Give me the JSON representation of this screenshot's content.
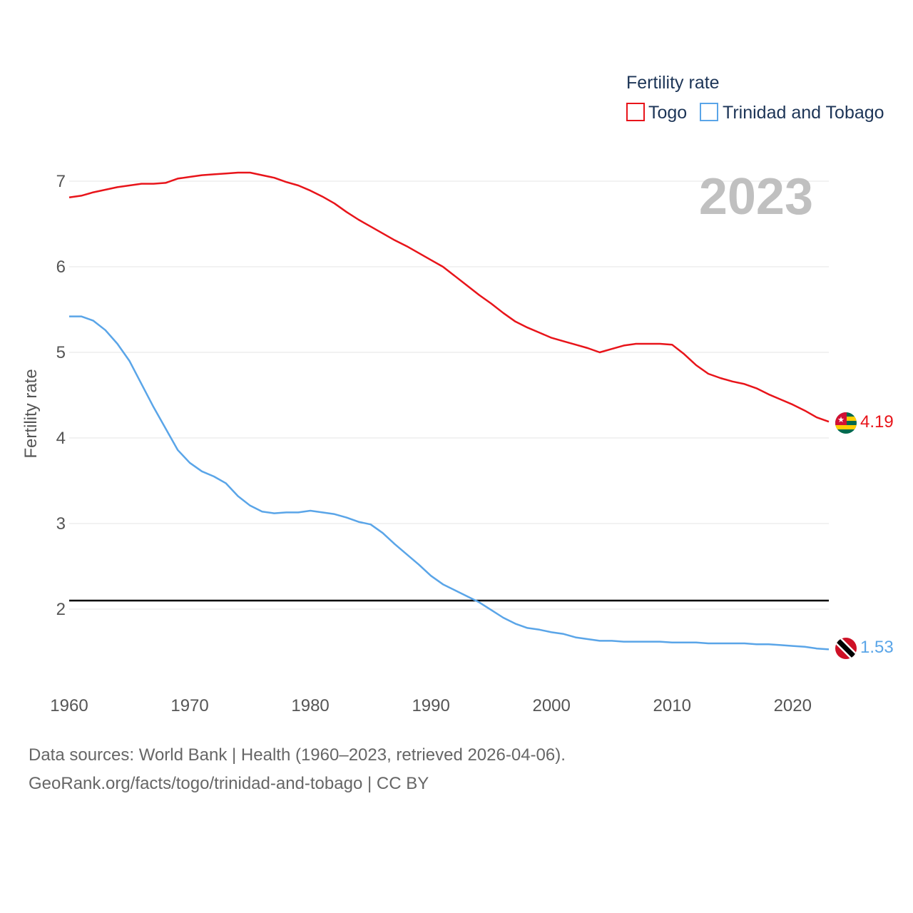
{
  "chart_data": {
    "type": "line",
    "title": "Fertility rate",
    "ylabel": "Fertility rate",
    "xlabel": "",
    "current_year": "2023",
    "xlim": [
      1960,
      2023
    ],
    "ylim": [
      1.2,
      7.45
    ],
    "x_ticks": [
      1960,
      1970,
      1980,
      1990,
      2000,
      2010,
      2020
    ],
    "y_ticks": [
      2,
      3,
      4,
      5,
      6,
      7
    ],
    "grid": true,
    "legend_position": "top-right",
    "reference_line": {
      "value": 2.1,
      "color": "#000000"
    },
    "series": [
      {
        "name": "Togo",
        "color": "#e8141a",
        "end_label": "4.19",
        "points": [
          [
            1960,
            6.81
          ],
          [
            1961,
            6.83
          ],
          [
            1962,
            6.87
          ],
          [
            1963,
            6.9
          ],
          [
            1964,
            6.93
          ],
          [
            1965,
            6.95
          ],
          [
            1966,
            6.97
          ],
          [
            1967,
            6.97
          ],
          [
            1968,
            6.98
          ],
          [
            1969,
            7.03
          ],
          [
            1970,
            7.05
          ],
          [
            1971,
            7.07
          ],
          [
            1972,
            7.08
          ],
          [
            1973,
            7.09
          ],
          [
            1974,
            7.1
          ],
          [
            1975,
            7.1
          ],
          [
            1976,
            7.07
          ],
          [
            1977,
            7.04
          ],
          [
            1978,
            6.99
          ],
          [
            1979,
            6.95
          ],
          [
            1980,
            6.89
          ],
          [
            1981,
            6.82
          ],
          [
            1982,
            6.74
          ],
          [
            1983,
            6.64
          ],
          [
            1984,
            6.55
          ],
          [
            1985,
            6.47
          ],
          [
            1986,
            6.39
          ],
          [
            1987,
            6.31
          ],
          [
            1988,
            6.24
          ],
          [
            1989,
            6.16
          ],
          [
            1990,
            6.08
          ],
          [
            1991,
            6.0
          ],
          [
            1992,
            5.89
          ],
          [
            1993,
            5.78
          ],
          [
            1994,
            5.67
          ],
          [
            1995,
            5.57
          ],
          [
            1996,
            5.46
          ],
          [
            1997,
            5.36
          ],
          [
            1998,
            5.29
          ],
          [
            1999,
            5.23
          ],
          [
            2000,
            5.17
          ],
          [
            2001,
            5.13
          ],
          [
            2002,
            5.09
          ],
          [
            2003,
            5.05
          ],
          [
            2004,
            5.0
          ],
          [
            2005,
            5.04
          ],
          [
            2006,
            5.08
          ],
          [
            2007,
            5.1
          ],
          [
            2008,
            5.1
          ],
          [
            2009,
            5.1
          ],
          [
            2010,
            5.09
          ],
          [
            2011,
            4.98
          ],
          [
            2012,
            4.85
          ],
          [
            2013,
            4.75
          ],
          [
            2014,
            4.7
          ],
          [
            2015,
            4.66
          ],
          [
            2016,
            4.63
          ],
          [
            2017,
            4.58
          ],
          [
            2018,
            4.51
          ],
          [
            2019,
            4.45
          ],
          [
            2020,
            4.39
          ],
          [
            2021,
            4.32
          ],
          [
            2022,
            4.24
          ],
          [
            2023,
            4.19
          ]
        ]
      },
      {
        "name": "Trinidad and Tobago",
        "color": "#5aa5e8",
        "end_label": "1.53",
        "points": [
          [
            1960,
            5.42
          ],
          [
            1961,
            5.42
          ],
          [
            1962,
            5.37
          ],
          [
            1963,
            5.26
          ],
          [
            1964,
            5.1
          ],
          [
            1965,
            4.9
          ],
          [
            1966,
            4.63
          ],
          [
            1967,
            4.36
          ],
          [
            1968,
            4.11
          ],
          [
            1969,
            3.86
          ],
          [
            1970,
            3.71
          ],
          [
            1971,
            3.61
          ],
          [
            1972,
            3.55
          ],
          [
            1973,
            3.47
          ],
          [
            1974,
            3.32
          ],
          [
            1975,
            3.21
          ],
          [
            1976,
            3.14
          ],
          [
            1977,
            3.12
          ],
          [
            1978,
            3.13
          ],
          [
            1979,
            3.13
          ],
          [
            1980,
            3.15
          ],
          [
            1981,
            3.13
          ],
          [
            1982,
            3.11
          ],
          [
            1983,
            3.07
          ],
          [
            1984,
            3.02
          ],
          [
            1985,
            2.99
          ],
          [
            1986,
            2.89
          ],
          [
            1987,
            2.76
          ],
          [
            1988,
            2.64
          ],
          [
            1989,
            2.52
          ],
          [
            1990,
            2.39
          ],
          [
            1991,
            2.29
          ],
          [
            1992,
            2.22
          ],
          [
            1993,
            2.15
          ],
          [
            1994,
            2.08
          ],
          [
            1995,
            1.99
          ],
          [
            1996,
            1.9
          ],
          [
            1997,
            1.83
          ],
          [
            1998,
            1.78
          ],
          [
            1999,
            1.76
          ],
          [
            2000,
            1.73
          ],
          [
            2001,
            1.71
          ],
          [
            2002,
            1.67
          ],
          [
            2003,
            1.65
          ],
          [
            2004,
            1.63
          ],
          [
            2005,
            1.63
          ],
          [
            2006,
            1.62
          ],
          [
            2007,
            1.62
          ],
          [
            2008,
            1.62
          ],
          [
            2009,
            1.62
          ],
          [
            2010,
            1.61
          ],
          [
            2011,
            1.61
          ],
          [
            2012,
            1.61
          ],
          [
            2013,
            1.6
          ],
          [
            2014,
            1.6
          ],
          [
            2015,
            1.6
          ],
          [
            2016,
            1.6
          ],
          [
            2017,
            1.59
          ],
          [
            2018,
            1.59
          ],
          [
            2019,
            1.58
          ],
          [
            2020,
            1.57
          ],
          [
            2021,
            1.56
          ],
          [
            2022,
            1.54
          ],
          [
            2023,
            1.53
          ]
        ]
      }
    ]
  },
  "footer": {
    "line1": "Data sources: World Bank | Health (1960–2023, retrieved 2026-04-06).",
    "line2": "GeoRank.org/facts/togo/trinidad-and-tobago | CC BY"
  },
  "flags": {
    "togo": {
      "green": "#006a4e",
      "yellow": "#ffce00",
      "red": "#d21034",
      "star": "#ffffff"
    },
    "trinidad_and_tobago": {
      "red": "#ce1126",
      "black": "#000000",
      "white": "#ffffff"
    }
  }
}
